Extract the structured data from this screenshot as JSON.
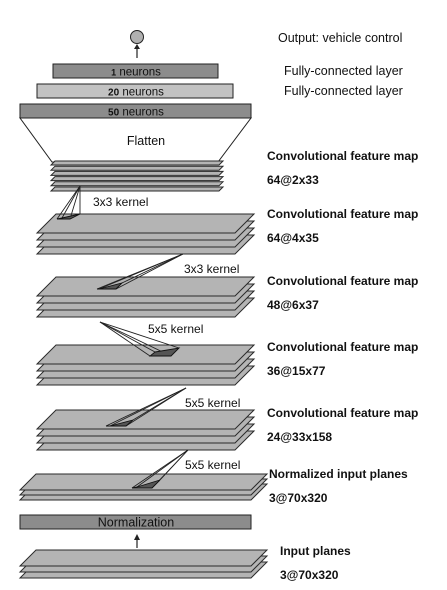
{
  "output": {
    "label": "Output: vehicle control"
  },
  "dense_layers": [
    {
      "count": "1",
      "unit": "neurons",
      "desc": "Fully-connected layer"
    },
    {
      "count": "20",
      "unit": "neurons",
      "desc": "Fully-connected layer"
    },
    {
      "count": "50",
      "unit": "neurons"
    }
  ],
  "flatten": {
    "label": "Flatten"
  },
  "feature_maps": [
    {
      "title": "Convolutional feature map",
      "shape": "64@2x33"
    },
    {
      "title": "Convolutional feature map",
      "shape": "64@4x35",
      "kernel": "3x3 kernel"
    },
    {
      "title": "Convolutional feature map",
      "shape": "48@6x37",
      "kernel": "3x3 kernel"
    },
    {
      "title": "Convolutional feature map",
      "shape": "36@15x77",
      "kernel": "5x5 kernel"
    },
    {
      "title": "Convolutional feature map",
      "shape": "24@33x158",
      "kernel": "5x5 kernel"
    }
  ],
  "normalized_input": {
    "title": "Normalized input planes",
    "shape": "3@70x320",
    "kernel": "5x5 kernel"
  },
  "normalization": {
    "label": "Normalization"
  },
  "input": {
    "title": "Input planes",
    "shape": "3@70x320"
  },
  "colors": {
    "plane": "#b4b4b4",
    "plane_stroke": "#2a2a2a",
    "bar_dark": "#7a7a7a",
    "bar_light": "#b8b8b8",
    "kernel": "#555555"
  }
}
